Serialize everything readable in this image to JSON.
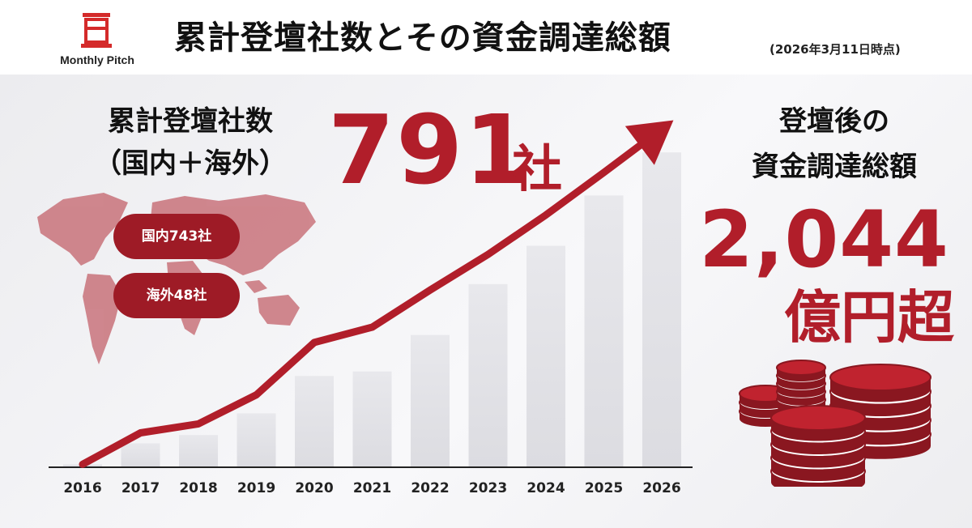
{
  "header": {
    "logo_text": "Monthly Pitch",
    "title": "累計登壇社数とその資金調達総額",
    "as_of": "(2026年3月11日時点)"
  },
  "companies": {
    "label_line1": "累計登壇社数",
    "label_line2": "（国内＋海外）",
    "value": "791",
    "unit": "社",
    "domestic": "国内743社",
    "overseas": "海外48社"
  },
  "funding": {
    "label_line1": "登壇後の",
    "label_line2": "資金調達総額",
    "value": "2,044",
    "unit": "億円超"
  },
  "colors": {
    "accent": "#b11e2a",
    "pill": "#9e1b26",
    "bar": "#e4e4e8"
  },
  "icons": [
    "monthly-pitch-logo-icon",
    "world-map-icon",
    "coin-stack-icon"
  ],
  "chart_data": {
    "type": "line",
    "categories": [
      "2016",
      "2017",
      "2018",
      "2019",
      "2020",
      "2021",
      "2022",
      "2023",
      "2024",
      "2025",
      "2026"
    ],
    "values": [
      10,
      115,
      145,
      242,
      417,
      468,
      592,
      711,
      843,
      985,
      1130
    ],
    "bar_values": [
      10,
      80,
      108,
      180,
      305,
      320,
      442,
      612,
      740,
      908,
      1052
    ],
    "ylim": [
      0,
      1250
    ],
    "xlabel": "",
    "ylabel": "",
    "grid": false,
    "legend": "none"
  }
}
